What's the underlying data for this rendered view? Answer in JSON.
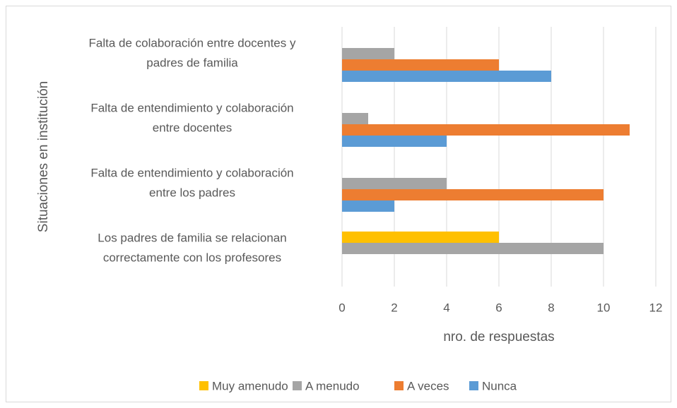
{
  "chart_data": {
    "type": "barh",
    "categories": [
      [
        "Falta de colaboración entre docentes y",
        "padres de familia"
      ],
      [
        "Falta de entendimiento y colaboración",
        "entre docentes"
      ],
      [
        "Falta de entendimiento y colaboración",
        "entre los padres"
      ],
      [
        "Los padres de familia se relacionan",
        "correctamente con los profesores"
      ]
    ],
    "series": [
      {
        "name": "Muy amenudo",
        "color": "#ffc000",
        "values": [
          null,
          null,
          null,
          6
        ]
      },
      {
        "name": "A menudo",
        "color": "#a5a5a5",
        "values": [
          2,
          1,
          4,
          10
        ]
      },
      {
        "name": "A veces",
        "color": "#ed7d31",
        "values": [
          6,
          11,
          10,
          null
        ]
      },
      {
        "name": "Nunca",
        "color": "#5b9bd5",
        "values": [
          8,
          4,
          2,
          null
        ]
      }
    ],
    "xlim": [
      0,
      12
    ],
    "xticks": [
      0,
      2,
      4,
      6,
      8,
      10,
      12
    ],
    "grid": true,
    "xlabel": "nro. de respuestas",
    "ylabel": "Situaciones en institución",
    "legend": "bottom"
  }
}
